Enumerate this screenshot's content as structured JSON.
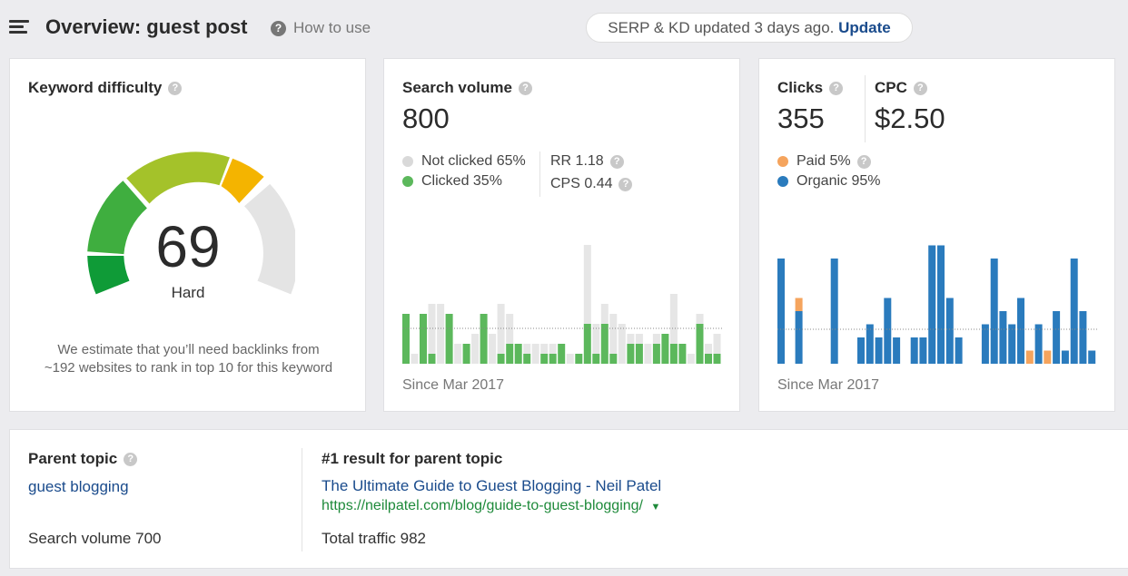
{
  "header": {
    "title": "Overview: guest post",
    "help_label": "How to use",
    "serp_text": "SERP & KD updated 3 days ago.",
    "update_label": "Update"
  },
  "kd": {
    "title": "Keyword difficulty",
    "score": "69",
    "score_value": 69,
    "level": "Hard",
    "note_line1": "We estimate that you’ll need backlinks from",
    "note_line2": "~192 websites to rank in top 10 for this keyword",
    "colors": {
      "green": "#28a745",
      "yellow": "#d8c000",
      "orange": "#f4b400",
      "grey": "#e2e2e2"
    }
  },
  "sv": {
    "title": "Search volume",
    "value": "800",
    "not_clicked": "Not clicked 65%",
    "clicked": "Clicked 35%",
    "rr": "RR 1.18",
    "cps": "CPS 0.44",
    "since": "Since Mar 2017",
    "colors": {
      "clicked": "#5cb85c",
      "not_clicked": "#e6e6e6"
    }
  },
  "clicks": {
    "title": "Clicks",
    "value": "355",
    "cpc_title": "CPC",
    "cpc_value": "$2.50",
    "paid": "Paid 5%",
    "organic": "Organic 95%",
    "since": "Since Mar 2017",
    "colors": {
      "paid": "#f5a45d",
      "organic": "#2a7bbd"
    }
  },
  "parent": {
    "title": "Parent topic",
    "topic": "guest blogging",
    "volume": "Search volume 700",
    "result_title": "#1 result for parent topic",
    "result_link": "The Ultimate Guide to Guest Blogging - Neil Patel",
    "result_url": "https://neilpatel.com/blog/guide-to-guest-blogging/",
    "traffic": "Total traffic 982"
  },
  "chart_data": [
    {
      "type": "bar",
      "title": "Search volume",
      "series": [
        {
          "name": "Clicked",
          "values": [
            5,
            0,
            5,
            1,
            0,
            5,
            0,
            2,
            0,
            5,
            0,
            1,
            2,
            2,
            1,
            0,
            1,
            1,
            2,
            0,
            1,
            4,
            1,
            4,
            1,
            0,
            2,
            2,
            0,
            2,
            3,
            2,
            2,
            0,
            4,
            1,
            1
          ]
        },
        {
          "name": "Not clicked",
          "values": [
            0,
            1,
            0,
            5,
            6,
            0,
            2,
            0,
            3,
            0,
            3,
            5,
            3,
            0,
            1,
            2,
            1,
            1,
            0,
            1,
            0,
            8,
            3,
            2,
            4,
            4,
            1,
            1,
            2,
            1,
            0,
            5,
            0,
            1,
            1,
            1,
            2
          ]
        }
      ]
    },
    {
      "type": "bar",
      "title": "Clicks",
      "series": [
        {
          "name": "Organic",
          "values": [
            8,
            0,
            4,
            0,
            0,
            0,
            8,
            0,
            0,
            2,
            3,
            2,
            5,
            2,
            0,
            2,
            2,
            9,
            9,
            5,
            2,
            0,
            0,
            3,
            8,
            4,
            3,
            5,
            0,
            3,
            0,
            4,
            1,
            8,
            4,
            1
          ]
        },
        {
          "name": "Paid",
          "values": [
            0,
            0,
            1,
            0,
            0,
            0,
            0,
            0,
            0,
            0,
            0,
            0,
            0,
            0,
            0,
            0,
            0,
            0,
            0,
            0,
            0,
            0,
            0,
            0,
            0,
            0,
            0,
            0,
            1,
            0,
            1,
            0,
            0,
            0,
            0,
            0
          ]
        }
      ]
    }
  ]
}
